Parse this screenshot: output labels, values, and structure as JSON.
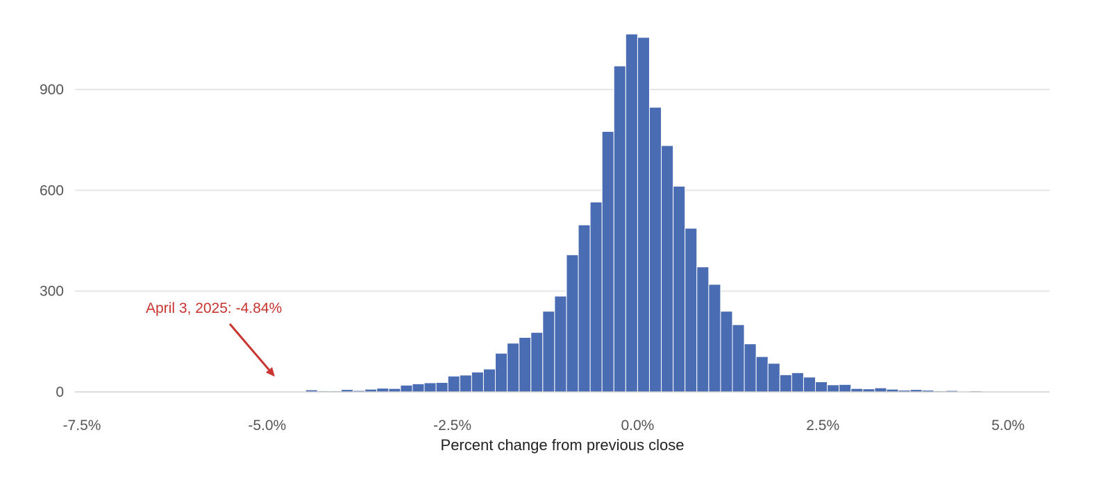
{
  "chart_data": {
    "type": "bar",
    "title": "",
    "xlabel": "Percent change from previous close",
    "ylabel": "",
    "xlim": [
      -7.7,
      5.5
    ],
    "ylim": [
      0,
      1090
    ],
    "bin_width": 0.16,
    "x_ticks": [
      {
        "value": -7.5,
        "label": "-7.5%"
      },
      {
        "value": -5.0,
        "label": "-5.0%"
      },
      {
        "value": -2.5,
        "label": "-2.5%"
      },
      {
        "value": 0.0,
        "label": "0.0%"
      },
      {
        "value": 2.5,
        "label": "2.5%"
      },
      {
        "value": 5.0,
        "label": "5.0%"
      }
    ],
    "y_ticks": [
      {
        "value": 0,
        "label": "0"
      },
      {
        "value": 300,
        "label": "300"
      },
      {
        "value": 600,
        "label": "600"
      },
      {
        "value": 900,
        "label": "900"
      }
    ],
    "grid": true,
    "bar_color": "#4a6cb3",
    "grid_color": "#e6e6e6",
    "bins": [
      {
        "x": -6.8,
        "count": 1
      },
      {
        "x": -6.16,
        "count": 1
      },
      {
        "x": -5.84,
        "count": 1
      },
      {
        "x": -5.36,
        "count": 1
      },
      {
        "x": -5.2,
        "count": 2
      },
      {
        "x": -5.04,
        "count": 2
      },
      {
        "x": -4.88,
        "count": 2
      },
      {
        "x": -4.72,
        "count": 1
      },
      {
        "x": -4.56,
        "count": 1
      },
      {
        "x": -4.4,
        "count": 6
      },
      {
        "x": -4.24,
        "count": 3
      },
      {
        "x": -4.08,
        "count": 3
      },
      {
        "x": -3.92,
        "count": 7
      },
      {
        "x": -3.76,
        "count": 4
      },
      {
        "x": -3.6,
        "count": 8
      },
      {
        "x": -3.44,
        "count": 11
      },
      {
        "x": -3.28,
        "count": 10
      },
      {
        "x": -3.12,
        "count": 20
      },
      {
        "x": -2.96,
        "count": 24
      },
      {
        "x": -2.8,
        "count": 27
      },
      {
        "x": -2.64,
        "count": 28
      },
      {
        "x": -2.48,
        "count": 47
      },
      {
        "x": -2.32,
        "count": 50
      },
      {
        "x": -2.16,
        "count": 59
      },
      {
        "x": -2.0,
        "count": 68
      },
      {
        "x": -1.84,
        "count": 115
      },
      {
        "x": -1.68,
        "count": 145
      },
      {
        "x": -1.52,
        "count": 162
      },
      {
        "x": -1.36,
        "count": 177
      },
      {
        "x": -1.2,
        "count": 240
      },
      {
        "x": -1.04,
        "count": 285
      },
      {
        "x": -0.88,
        "count": 408
      },
      {
        "x": -0.72,
        "count": 497
      },
      {
        "x": -0.56,
        "count": 565
      },
      {
        "x": -0.4,
        "count": 775
      },
      {
        "x": -0.24,
        "count": 970
      },
      {
        "x": -0.08,
        "count": 1065
      },
      {
        "x": 0.08,
        "count": 1055
      },
      {
        "x": 0.24,
        "count": 847
      },
      {
        "x": 0.4,
        "count": 733
      },
      {
        "x": 0.56,
        "count": 612
      },
      {
        "x": 0.72,
        "count": 487
      },
      {
        "x": 0.88,
        "count": 372
      },
      {
        "x": 1.04,
        "count": 320
      },
      {
        "x": 1.2,
        "count": 240
      },
      {
        "x": 1.36,
        "count": 200
      },
      {
        "x": 1.52,
        "count": 143
      },
      {
        "x": 1.68,
        "count": 105
      },
      {
        "x": 1.84,
        "count": 85
      },
      {
        "x": 2.0,
        "count": 51
      },
      {
        "x": 2.16,
        "count": 57
      },
      {
        "x": 2.32,
        "count": 44
      },
      {
        "x": 2.48,
        "count": 30
      },
      {
        "x": 2.64,
        "count": 21
      },
      {
        "x": 2.8,
        "count": 22
      },
      {
        "x": 2.96,
        "count": 10
      },
      {
        "x": 3.12,
        "count": 9
      },
      {
        "x": 3.28,
        "count": 12
      },
      {
        "x": 3.44,
        "count": 8
      },
      {
        "x": 3.6,
        "count": 5
      },
      {
        "x": 3.76,
        "count": 7
      },
      {
        "x": 3.92,
        "count": 5
      },
      {
        "x": 4.08,
        "count": 3
      },
      {
        "x": 4.24,
        "count": 4
      },
      {
        "x": 4.56,
        "count": 3
      },
      {
        "x": 4.72,
        "count": 2
      },
      {
        "x": 4.88,
        "count": 2
      },
      {
        "x": 5.04,
        "count": 1
      }
    ],
    "annotation": {
      "text": "April 3, 2025: -4.84%",
      "x": -4.84,
      "color": "#c8342f"
    }
  }
}
